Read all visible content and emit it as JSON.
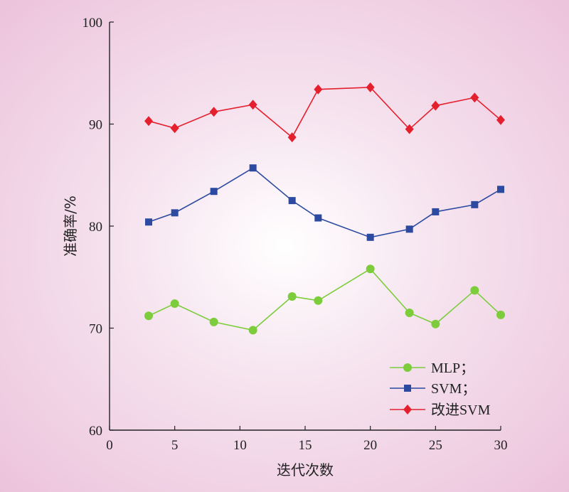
{
  "chart_data": {
    "type": "line",
    "xlabel": "迭代次数",
    "ylabel": "准确率/%",
    "xlim": [
      0,
      30
    ],
    "ylim": [
      60,
      100
    ],
    "x_ticks": [
      0,
      5,
      10,
      15,
      20,
      25,
      30
    ],
    "y_ticks": [
      60,
      70,
      80,
      90,
      100
    ],
    "grid": false,
    "legend_position": "bottom-right",
    "x": [
      3,
      5,
      8,
      11,
      14,
      16,
      20,
      23,
      25,
      28,
      30
    ],
    "series": [
      {
        "name": "MLP；",
        "color": "#7ccc3c",
        "marker": "circle",
        "values": [
          71.2,
          72.4,
          70.6,
          69.8,
          73.1,
          72.7,
          75.8,
          71.5,
          70.4,
          73.7,
          71.3
        ]
      },
      {
        "name": "SVM；",
        "color": "#2b4aa0",
        "marker": "square",
        "values": [
          80.4,
          81.3,
          83.4,
          85.7,
          82.5,
          80.8,
          78.9,
          79.7,
          81.4,
          82.1,
          83.6
        ]
      },
      {
        "name": "改进SVM",
        "color": "#e5202e",
        "marker": "diamond",
        "values": [
          90.3,
          89.6,
          91.2,
          91.9,
          88.7,
          93.4,
          93.6,
          89.5,
          91.8,
          92.6,
          90.4
        ]
      }
    ]
  }
}
